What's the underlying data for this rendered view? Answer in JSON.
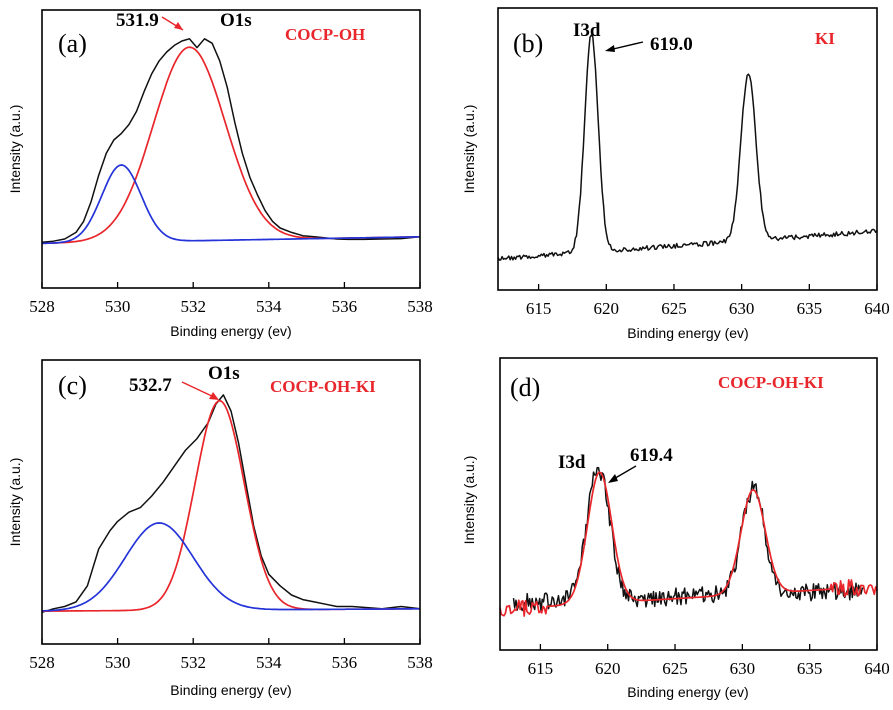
{
  "chart_data": [
    {
      "id": "a",
      "type": "line",
      "panel_label": "(a)",
      "sample": "COCP-OH",
      "peak_name": "O1s",
      "peak_value_label": "531.9",
      "xlabel": "Binding energy (ev)",
      "ylabel": "Intensity (a.u.)",
      "xlim": [
        528,
        538
      ],
      "ylim": [
        0,
        1
      ],
      "xticks": [
        528,
        530,
        532,
        534,
        536,
        538
      ],
      "x_tick_labels": [
        "528",
        "530",
        "532",
        "534",
        "536",
        "538"
      ],
      "colors": {
        "raw": "#111111",
        "fit_main": "#e8262b",
        "fit_minor": "#2434d8"
      },
      "series": [
        {
          "role": "raw",
          "style": "measured",
          "x": [
            528.0,
            528.3,
            528.6,
            528.9,
            529.1,
            529.3,
            529.5,
            529.7,
            529.9,
            530.1,
            530.3,
            530.5,
            530.7,
            530.9,
            531.1,
            531.3,
            531.5,
            531.7,
            531.9,
            532.1,
            532.3,
            532.5,
            532.7,
            532.9,
            533.1,
            533.3,
            533.5,
            533.7,
            533.9,
            534.1,
            534.3,
            534.6,
            534.9,
            535.2,
            535.5,
            535.8,
            536.1,
            536.5,
            537.0,
            537.5,
            538.0
          ],
          "y": [
            0.035,
            0.04,
            0.05,
            0.08,
            0.13,
            0.22,
            0.34,
            0.44,
            0.5,
            0.53,
            0.57,
            0.63,
            0.72,
            0.8,
            0.86,
            0.9,
            0.93,
            0.95,
            0.96,
            0.92,
            0.96,
            0.94,
            0.86,
            0.74,
            0.58,
            0.44,
            0.33,
            0.25,
            0.18,
            0.13,
            0.1,
            0.08,
            0.065,
            0.06,
            0.055,
            0.05,
            0.048,
            0.048,
            0.05,
            0.052,
            0.06
          ]
        },
        {
          "role": "fit_main",
          "style": "gaussian",
          "center": 531.9,
          "height": 0.88,
          "sigma": 0.95,
          "baseline_start": 0.03,
          "baseline_end": 0.06
        },
        {
          "role": "fit_minor",
          "style": "gaussian",
          "center": 530.1,
          "height": 0.35,
          "sigma": 0.52,
          "baseline_start": 0.03,
          "baseline_end": 0.06
        }
      ]
    },
    {
      "id": "b",
      "type": "line",
      "panel_label": "(b)",
      "sample": "KI",
      "peak_name": "I3d",
      "peak_value_label": "619.0",
      "xlabel": "Binding energy (ev)",
      "ylabel": "Intensity (a.u.)",
      "xlim": [
        612,
        640
      ],
      "ylim": [
        0,
        1
      ],
      "xticks": [
        615,
        620,
        625,
        630,
        635,
        640
      ],
      "x_tick_labels": [
        "615",
        "620",
        "625",
        "630",
        "635",
        "640"
      ],
      "colors": {
        "raw": "#111111"
      },
      "series": [
        {
          "role": "raw",
          "style": "measured_peaks",
          "x_start": 612,
          "x_end": 640,
          "baseline_start": 0.04,
          "baseline_end": 0.16,
          "noise": 0.01,
          "peaks": [
            {
              "center": 618.9,
              "height": 0.95,
              "sigma": 0.5
            },
            {
              "center": 630.5,
              "height": 0.73,
              "sigma": 0.55
            }
          ]
        }
      ]
    },
    {
      "id": "c",
      "type": "line",
      "panel_label": "(c)",
      "sample": "COCP-OH-KI",
      "peak_name": "O1s",
      "peak_value_label": "532.7",
      "xlabel": "Binding energy (ev)",
      "ylabel": "Intensity (a.u.)",
      "xlim": [
        528,
        538
      ],
      "ylim": [
        0,
        1
      ],
      "xticks": [
        528,
        530,
        532,
        534,
        536,
        538
      ],
      "x_tick_labels": [
        "528",
        "530",
        "532",
        "534",
        "536",
        "538"
      ],
      "colors": {
        "raw": "#111111",
        "fit_main": "#e8262b",
        "fit_minor": "#2434d8"
      },
      "series": [
        {
          "role": "raw",
          "style": "measured",
          "x": [
            528.0,
            528.3,
            528.6,
            528.9,
            529.2,
            529.5,
            529.8,
            530.0,
            530.3,
            530.6,
            530.9,
            531.2,
            531.5,
            531.8,
            532.1,
            532.4,
            532.6,
            532.8,
            533.0,
            533.2,
            533.4,
            533.6,
            533.8,
            534.0,
            534.3,
            534.6,
            534.9,
            535.2,
            535.5,
            535.8,
            536.2,
            536.6,
            537.0,
            537.5,
            538.0
          ],
          "y": [
            0.025,
            0.04,
            0.05,
            0.07,
            0.14,
            0.3,
            0.38,
            0.42,
            0.46,
            0.48,
            0.53,
            0.59,
            0.66,
            0.73,
            0.78,
            0.85,
            0.93,
            0.97,
            0.9,
            0.76,
            0.58,
            0.4,
            0.27,
            0.19,
            0.14,
            0.1,
            0.08,
            0.07,
            0.06,
            0.05,
            0.05,
            0.045,
            0.04,
            0.05,
            0.04
          ]
        },
        {
          "role": "fit_main",
          "style": "gaussian",
          "center": 532.7,
          "height": 0.91,
          "sigma": 0.65,
          "baseline_start": 0.03,
          "baseline_end": 0.04
        },
        {
          "role": "fit_minor",
          "style": "gaussian",
          "center": 531.1,
          "height": 0.38,
          "sigma": 0.9,
          "baseline_start": 0.03,
          "baseline_end": 0.04
        }
      ]
    },
    {
      "id": "d",
      "type": "line",
      "panel_label": "(d)",
      "sample": "COCP-OH-KI",
      "peak_name": "I3d",
      "peak_value_label": "619.4",
      "xlabel": "Binding energy (ev)",
      "ylabel": "Intensity (a.u.)",
      "xlim": [
        612,
        640
      ],
      "ylim": [
        0,
        1
      ],
      "xticks": [
        615,
        620,
        625,
        630,
        635,
        640
      ],
      "x_tick_labels": [
        "615",
        "620",
        "625",
        "630",
        "635",
        "640"
      ],
      "colors": {
        "raw": "#111111",
        "fit": "#e8262b"
      },
      "series": [
        {
          "role": "raw",
          "style": "measured_peaks",
          "x_start": 613,
          "x_end": 639,
          "baseline_start": 0.12,
          "baseline_end": 0.18,
          "noise": 0.045,
          "peaks": [
            {
              "center": 619.3,
              "height": 0.63,
              "sigma": 0.85
            },
            {
              "center": 630.8,
              "height": 0.51,
              "sigma": 0.85
            }
          ]
        },
        {
          "role": "fit",
          "style": "fit_peaks",
          "x_start": 612,
          "x_end": 640,
          "baseline_start": 0.09,
          "baseline_end": 0.2,
          "noise": 0.04,
          "fit_x_start": 615.5,
          "fit_x_end": 636.5,
          "peaks": [
            {
              "center": 619.4,
              "height": 0.63,
              "sigma": 0.9
            },
            {
              "center": 630.8,
              "height": 0.5,
              "sigma": 0.9
            }
          ]
        }
      ]
    }
  ]
}
